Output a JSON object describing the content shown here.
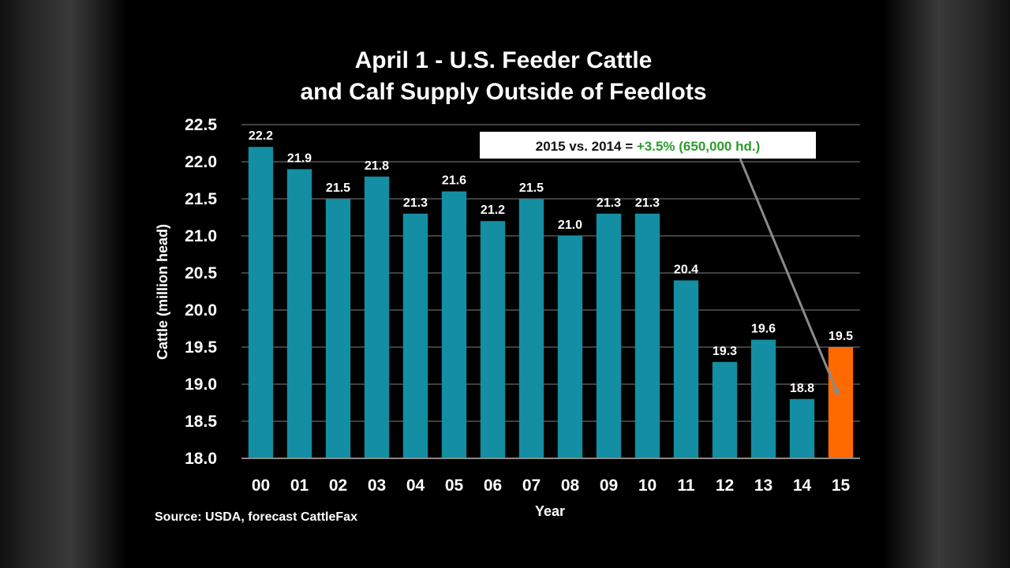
{
  "chart_data": {
    "type": "bar",
    "title": [
      "April 1 - U.S. Feeder Cattle",
      "and Calf Supply Outside of Feedlots"
    ],
    "xlabel": "Year",
    "ylabel": "Cattle (million head)",
    "categories": [
      "00",
      "01",
      "02",
      "03",
      "04",
      "05",
      "06",
      "07",
      "08",
      "09",
      "10",
      "11",
      "12",
      "13",
      "14",
      "15"
    ],
    "values": [
      22.2,
      21.9,
      21.5,
      21.8,
      21.3,
      21.6,
      21.2,
      21.5,
      21.0,
      21.3,
      21.3,
      20.4,
      19.3,
      19.6,
      18.8,
      19.5
    ],
    "data_labels": [
      "22.2",
      "21.9",
      "21.5",
      "21.8",
      "21.3",
      "21.6",
      "21.2",
      "21.5",
      "21.0",
      "21.3",
      "21.3",
      "20.4",
      "19.3",
      "19.6",
      "18.8",
      "19.5"
    ],
    "ylim": [
      18.0,
      22.5
    ],
    "yticks": [
      18.0,
      18.5,
      19.0,
      19.5,
      20.0,
      20.5,
      21.0,
      21.5,
      22.0,
      22.5
    ],
    "ytick_labels": [
      "18.0",
      "18.5",
      "19.0",
      "19.5",
      "20.0",
      "20.5",
      "21.0",
      "21.5",
      "22.0",
      "22.5"
    ],
    "grid": true,
    "highlight_index": 15,
    "colors": {
      "bar": "#138ea2",
      "highlight": "#ff6a00",
      "grid": "#555555",
      "text": "#ffffff",
      "callout_positive": "#2e9b2e"
    },
    "annotation": {
      "prefix": "2015 vs. 2014 = ",
      "highlight": "+3.5% (650,000 hd.)",
      "points_to": "15"
    },
    "source": "Source: USDA, forecast CattleFax"
  }
}
